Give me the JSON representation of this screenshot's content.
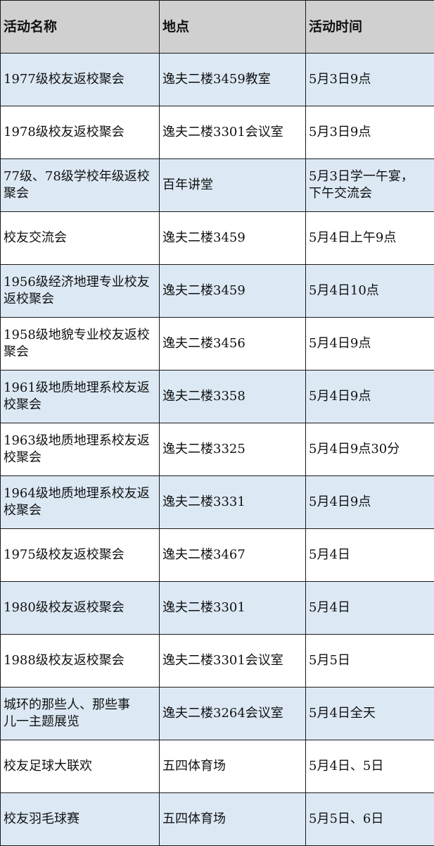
{
  "header": [
    "活动名称",
    "地点",
    "活动时间"
  ],
  "row_colors": {
    "header": "#d0d0d0",
    "odd": "#dce9f5",
    "even": "#ffffff"
  },
  "rows": [
    [
      "1977级校友返校聚会",
      "逸夫二楼3459教室",
      "5月3日9点"
    ],
    [
      "1978级校友返校聚会",
      "逸夫二楼3301会议室",
      "5月3日9点"
    ],
    [
      "77级、78级学校年级返校\n聚会",
      "百年讲堂",
      "5月3日学一午宴，\n下午交流会"
    ],
    [
      "校友交流会",
      "逸夫二楼3459",
      "5月4日上午9点"
    ],
    [
      "1956级经济地理专业校友\n返校聚会",
      "逸夫二楼3459",
      "5月4日10点"
    ],
    [
      "1958级地貌专业校友返校\n聚会",
      "逸夫二楼3456",
      "5月4日9点"
    ],
    [
      "1961级地质地理系校友返\n校聚会",
      "逸夫二楼3358",
      "5月4日9点"
    ],
    [
      "1963级地质地理系校友返\n校聚会",
      "逸夫二楼3325",
      "5月4日9点30分"
    ],
    [
      "1964级地质地理系校友返\n校聚会",
      "逸夫二楼3331",
      "5月4日9点"
    ],
    [
      "1975级校友返校聚会",
      "逸夫二楼3467",
      "5月4日"
    ],
    [
      "1980级校友返校聚会",
      "逸夫二楼3301",
      "5月4日"
    ],
    [
      "1988级校友返校聚会",
      "逸夫二楼3301会议室",
      "5月5日"
    ],
    [
      "城环的那些人、那些事\n儿一主题展览",
      "逸夫二楼3264会议室",
      "5月4日全天"
    ],
    [
      "校友足球大联欢",
      "五四体育场",
      "5月4日、5日"
    ],
    [
      "校友羽毛球赛",
      "五四体育场",
      "5月5日、6日"
    ]
  ]
}
